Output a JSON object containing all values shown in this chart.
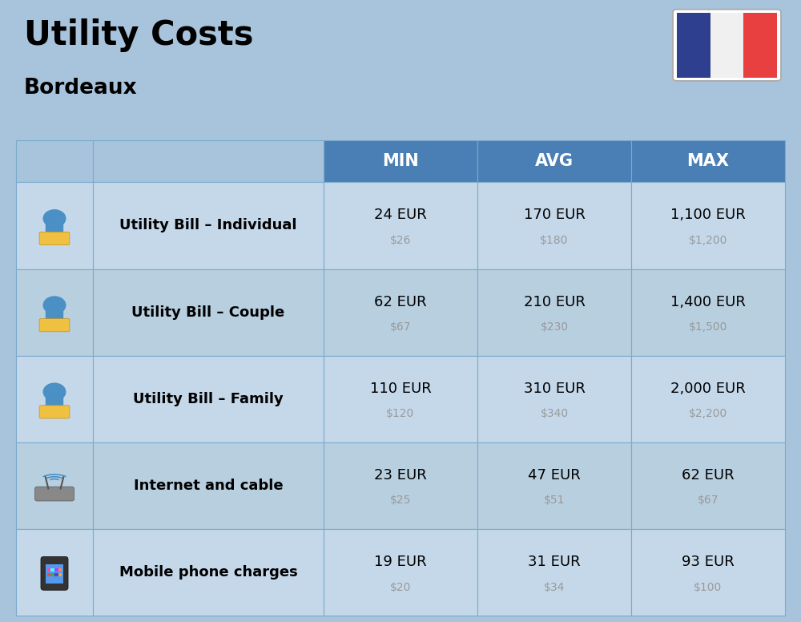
{
  "title": "Utility Costs",
  "subtitle": "Bordeaux",
  "background_color": "#a8c4dc",
  "header_color": "#4a7fb5",
  "header_text_color": "#ffffff",
  "row_color_light": "#c5d8ea",
  "row_color_dark": "#b8cfe0",
  "cell_border_color": "#7aaacb",
  "title_color": "#000000",
  "subtitle_color": "#000000",
  "eur_color": "#000000",
  "usd_color": "#999999",
  "label_color": "#000000",
  "headers": [
    "",
    "",
    "MIN",
    "AVG",
    "MAX"
  ],
  "rows": [
    {
      "label": "Utility Bill - Individual",
      "min_eur": "24 EUR",
      "min_usd": "$26",
      "avg_eur": "170 EUR",
      "avg_usd": "$180",
      "max_eur": "1,100 EUR",
      "max_usd": "$1,200"
    },
    {
      "label": "Utility Bill - Couple",
      "min_eur": "62 EUR",
      "min_usd": "$67",
      "avg_eur": "210 EUR",
      "avg_usd": "$230",
      "max_eur": "1,400 EUR",
      "max_usd": "$1,500"
    },
    {
      "label": "Utility Bill - Family",
      "min_eur": "110 EUR",
      "min_usd": "$120",
      "avg_eur": "310 EUR",
      "avg_usd": "$340",
      "max_eur": "2,000 EUR",
      "max_usd": "$2,200"
    },
    {
      "label": "Internet and cable",
      "min_eur": "23 EUR",
      "min_usd": "$25",
      "avg_eur": "47 EUR",
      "avg_usd": "$51",
      "max_eur": "62 EUR",
      "max_usd": "$67"
    },
    {
      "label": "Mobile phone charges",
      "min_eur": "19 EUR",
      "min_usd": "$20",
      "avg_eur": "31 EUR",
      "avg_usd": "$34",
      "max_eur": "93 EUR",
      "max_usd": "$100"
    }
  ],
  "flag_colors": [
    "#2f3f8f",
    "#f0f0f0",
    "#e84040"
  ],
  "col_props": [
    0.09,
    0.27,
    0.18,
    0.18,
    0.18
  ]
}
